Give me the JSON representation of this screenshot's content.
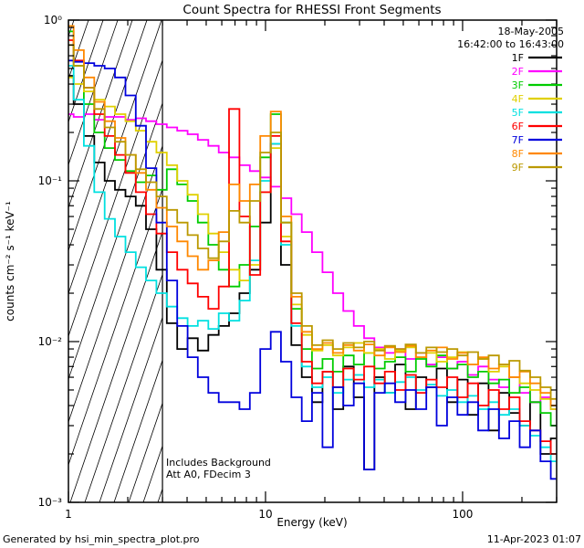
{
  "title": "Count Spectra for RHESSI Front Segments",
  "header_annotations": {
    "date": "18-May-2005",
    "time_range": "16:42:00 to 16:43:00"
  },
  "plot_annotations": {
    "line1": "Includes Background",
    "line2": "Att A0, FDecim 3"
  },
  "footer": {
    "left": "Generated by hsi_min_spectra_plot.pro",
    "right": "11-Apr-2023 01:07"
  },
  "chart_data": {
    "type": "line",
    "title": "Count Spectra for RHESSI Front Segments",
    "xlabel": "Energy (keV)",
    "ylabel": "counts cm⁻² s⁻¹ keV⁻¹",
    "xscale": "log",
    "yscale": "log",
    "xlim": [
      1,
      300
    ],
    "ylim": [
      0.001,
      1
    ],
    "xticks": [
      1,
      10,
      100
    ],
    "xtick_labels": [
      "1",
      "10",
      "100"
    ],
    "yticks": [
      0.001,
      0.01,
      0.1,
      1
    ],
    "ytick_labels": [
      "10⁻³",
      "10⁻²",
      "10⁻¹",
      "10⁰"
    ],
    "grid": false,
    "legend_position": "top-right",
    "hatch_region": {
      "xmin": 1,
      "xmax": 3,
      "style": "diagonal-hatch",
      "meaning": "attenuated low-energy region"
    },
    "colors": {
      "date": "#000099",
      "time_range": "#cc0000",
      "frame": "#000000",
      "background": "#ffffff"
    },
    "energies_keV": [
      1.0,
      1.13,
      1.27,
      1.44,
      1.62,
      1.83,
      2.07,
      2.33,
      2.63,
      2.97,
      3.35,
      3.79,
      4.27,
      4.82,
      5.45,
      6.15,
      6.94,
      7.84,
      8.85,
      10.0,
      11.3,
      12.7,
      14.4,
      16.2,
      18.3,
      20.7,
      23.3,
      26.4,
      29.8,
      33.6,
      37.9,
      42.8,
      48.3,
      54.5,
      61.6,
      69.5,
      78.5,
      88.6,
      100.0,
      112.9,
      127.4,
      143.9,
      162.4,
      183.3,
      207.0,
      233.7,
      263.8,
      297.8
    ],
    "series": [
      {
        "name": "1F",
        "color": "#000000",
        "values": [
          0.45,
          0.3,
          0.19,
          0.13,
          0.1,
          0.088,
          0.08,
          0.07,
          0.05,
          0.028,
          0.013,
          0.009,
          0.0105,
          0.0088,
          0.011,
          0.0125,
          0.015,
          0.02,
          0.028,
          0.055,
          0.17,
          0.03,
          0.0095,
          0.006,
          0.0042,
          0.0065,
          0.0038,
          0.007,
          0.0045,
          0.0016,
          0.006,
          0.0048,
          0.0072,
          0.0038,
          0.006,
          0.0052,
          0.0068,
          0.0042,
          0.0058,
          0.0035,
          0.0055,
          0.0028,
          0.0048,
          0.0036,
          0.003,
          0.0042,
          0.002,
          0.0025
        ]
      },
      {
        "name": "2F",
        "color": "#ff00ff",
        "values": [
          0.26,
          0.25,
          0.26,
          0.24,
          0.25,
          0.25,
          0.24,
          0.245,
          0.235,
          0.225,
          0.215,
          0.205,
          0.195,
          0.18,
          0.165,
          0.15,
          0.14,
          0.125,
          0.115,
          0.105,
          0.092,
          0.078,
          0.062,
          0.048,
          0.036,
          0.027,
          0.02,
          0.0155,
          0.0125,
          0.0105,
          0.0092,
          0.0085,
          0.009,
          0.0078,
          0.0085,
          0.0072,
          0.008,
          0.0068,
          0.0075,
          0.0062,
          0.007,
          0.0058,
          0.0052,
          0.006,
          0.0048,
          0.0042,
          0.0045,
          0.0038
        ]
      },
      {
        "name": "3F",
        "color": "#00cc00",
        "values": [
          0.85,
          0.52,
          0.3,
          0.2,
          0.16,
          0.135,
          0.115,
          0.098,
          0.108,
          0.088,
          0.118,
          0.095,
          0.075,
          0.055,
          0.04,
          0.028,
          0.022,
          0.03,
          0.052,
          0.14,
          0.26,
          0.055,
          0.016,
          0.009,
          0.0068,
          0.0078,
          0.0065,
          0.0082,
          0.0072,
          0.0085,
          0.0068,
          0.0075,
          0.008,
          0.0065,
          0.0078,
          0.007,
          0.0082,
          0.0068,
          0.0072,
          0.006,
          0.0065,
          0.0055,
          0.0058,
          0.0048,
          0.0052,
          0.0042,
          0.0036,
          0.003
        ]
      },
      {
        "name": "4F",
        "color": "#e0d000",
        "values": [
          0.44,
          0.4,
          0.36,
          0.32,
          0.29,
          0.26,
          0.235,
          0.205,
          0.175,
          0.15,
          0.125,
          0.1,
          0.082,
          0.062,
          0.047,
          0.036,
          0.028,
          0.024,
          0.03,
          0.085,
          0.16,
          0.045,
          0.017,
          0.011,
          0.0088,
          0.0095,
          0.0082,
          0.0092,
          0.0098,
          0.0085,
          0.009,
          0.0078,
          0.0088,
          0.0092,
          0.008,
          0.0085,
          0.0075,
          0.008,
          0.0086,
          0.0072,
          0.0078,
          0.0065,
          0.007,
          0.006,
          0.0055,
          0.005,
          0.0044,
          0.0038
        ]
      },
      {
        "name": "5F",
        "color": "#00e0e0",
        "values": [
          0.52,
          0.32,
          0.165,
          0.085,
          0.058,
          0.045,
          0.036,
          0.029,
          0.024,
          0.02,
          0.0165,
          0.014,
          0.0125,
          0.0135,
          0.012,
          0.015,
          0.0135,
          0.018,
          0.032,
          0.1,
          0.17,
          0.04,
          0.0125,
          0.007,
          0.0052,
          0.006,
          0.0048,
          0.0058,
          0.0062,
          0.0052,
          0.0058,
          0.0048,
          0.0056,
          0.006,
          0.005,
          0.0054,
          0.0046,
          0.005,
          0.0042,
          0.0046,
          0.0038,
          0.0042,
          0.0035,
          0.0038,
          0.003,
          0.0026,
          0.0022,
          0.0018
        ]
      },
      {
        "name": "6F",
        "color": "#ff0000",
        "values": [
          0.75,
          0.56,
          0.38,
          0.26,
          0.19,
          0.145,
          0.112,
          0.085,
          0.062,
          0.047,
          0.036,
          0.028,
          0.023,
          0.019,
          0.016,
          0.022,
          0.28,
          0.06,
          0.026,
          0.085,
          0.19,
          0.042,
          0.013,
          0.0075,
          0.0055,
          0.0065,
          0.0052,
          0.0068,
          0.0058,
          0.007,
          0.0055,
          0.0065,
          0.005,
          0.0062,
          0.0048,
          0.0058,
          0.0052,
          0.006,
          0.0045,
          0.0055,
          0.004,
          0.005,
          0.0038,
          0.0045,
          0.0032,
          0.0028,
          0.0024,
          0.002
        ]
      },
      {
        "name": "7F",
        "color": "#0000dd",
        "values": [
          0.56,
          0.55,
          0.54,
          0.52,
          0.5,
          0.44,
          0.34,
          0.22,
          0.12,
          0.055,
          0.024,
          0.0125,
          0.008,
          0.006,
          0.0048,
          0.0042,
          0.0042,
          0.0038,
          0.0048,
          0.009,
          0.0115,
          0.0075,
          0.0045,
          0.0032,
          0.0048,
          0.0022,
          0.0052,
          0.004,
          0.0055,
          0.0016,
          0.0048,
          0.0055,
          0.0042,
          0.005,
          0.0038,
          0.0052,
          0.003,
          0.0045,
          0.0035,
          0.0042,
          0.0028,
          0.0038,
          0.0025,
          0.0032,
          0.0022,
          0.0028,
          0.0018,
          0.0014
        ]
      },
      {
        "name": "8F",
        "color": "#ff8800",
        "values": [
          0.92,
          0.65,
          0.44,
          0.31,
          0.235,
          0.185,
          0.145,
          0.112,
          0.088,
          0.068,
          0.052,
          0.042,
          0.034,
          0.028,
          0.032,
          0.048,
          0.095,
          0.075,
          0.095,
          0.19,
          0.27,
          0.06,
          0.019,
          0.0115,
          0.009,
          0.0098,
          0.0085,
          0.0095,
          0.0088,
          0.0096,
          0.0082,
          0.0092,
          0.0086,
          0.0094,
          0.008,
          0.0088,
          0.0092,
          0.0078,
          0.0085,
          0.0072,
          0.008,
          0.0068,
          0.0072,
          0.006,
          0.0065,
          0.0055,
          0.0048,
          0.004
        ]
      },
      {
        "name": "9F",
        "color": "#bb9900",
        "values": [
          0.7,
          0.52,
          0.38,
          0.28,
          0.215,
          0.175,
          0.145,
          0.118,
          0.098,
          0.08,
          0.066,
          0.055,
          0.046,
          0.038,
          0.033,
          0.042,
          0.065,
          0.055,
          0.075,
          0.15,
          0.2,
          0.055,
          0.02,
          0.0125,
          0.0095,
          0.0102,
          0.009,
          0.0098,
          0.0092,
          0.01,
          0.0088,
          0.0094,
          0.009,
          0.0096,
          0.0085,
          0.0092,
          0.0086,
          0.009,
          0.0082,
          0.0086,
          0.0078,
          0.0082,
          0.0072,
          0.0076,
          0.0066,
          0.006,
          0.0052,
          0.0044
        ]
      }
    ]
  }
}
